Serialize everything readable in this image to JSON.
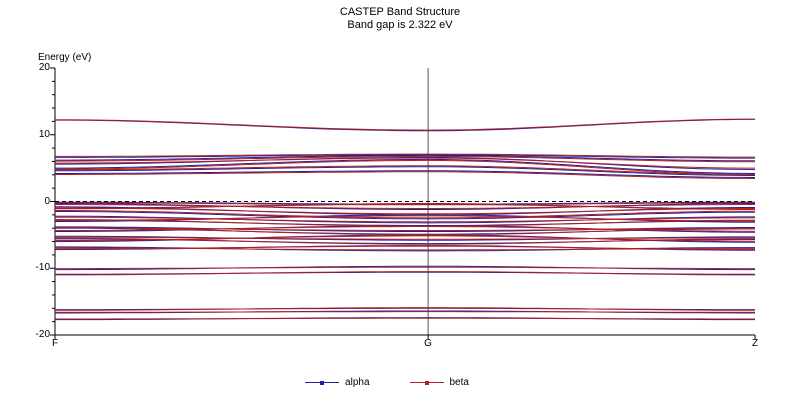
{
  "title": {
    "line1": "CASTEP Band Structure",
    "line2": "Band gap is 2.322 eV"
  },
  "axis": {
    "ylabel": "Energy (eV)",
    "yticks": [
      "20",
      "10",
      "0",
      "-10",
      "-20"
    ],
    "xticks": [
      "F",
      "G",
      "Z"
    ]
  },
  "legend": [
    {
      "label": "alpha",
      "color": "#2020a0"
    },
    {
      "label": "beta",
      "color": "#b02020"
    }
  ],
  "chart_data": {
    "type": "line",
    "title": "CASTEP Band Structure",
    "subtitle": "Band gap is 2.322 eV",
    "ylabel": "Energy (eV)",
    "ylim": [
      -20,
      20
    ],
    "x_kpoints": [
      "F",
      "G",
      "Z"
    ],
    "g_position": 0.533,
    "fermi_level_eV": 0,
    "band_gap_eV": 2.322,
    "series": [
      {
        "name": "alpha",
        "color": "#2020a0",
        "bands_fgz": [
          [
            12.2,
            10.6,
            12.3
          ],
          [
            6.6,
            7.0,
            6.5
          ],
          [
            6.2,
            6.9,
            6.1
          ],
          [
            5.6,
            6.6,
            4.8
          ],
          [
            5.0,
            6.3,
            4.2
          ],
          [
            4.6,
            5.2,
            3.9
          ],
          [
            4.2,
            4.6,
            3.6
          ],
          [
            -0.1,
            -0.4,
            -0.1
          ],
          [
            -0.3,
            -1.2,
            -0.3
          ],
          [
            -0.8,
            -2.0,
            -0.9
          ],
          [
            -1.0,
            -0.4,
            -1.1
          ],
          [
            -1.5,
            -2.6,
            -1.6
          ],
          [
            -2.2,
            -3.2,
            -2.3
          ],
          [
            -2.8,
            -3.6,
            -2.9
          ],
          [
            -3.0,
            -2.0,
            -3.1
          ],
          [
            -3.8,
            -4.5,
            -3.9
          ],
          [
            -4.0,
            -4.9,
            -4.1
          ],
          [
            -4.5,
            -3.6,
            -4.6
          ],
          [
            -5.2,
            -5.8,
            -5.3
          ],
          [
            -5.6,
            -6.3,
            -5.7
          ],
          [
            -6.0,
            -5.0,
            -6.1
          ],
          [
            -6.8,
            -7.4,
            -6.9
          ],
          [
            -7.2,
            -6.6,
            -7.3
          ],
          [
            -10.2,
            -9.7,
            -10.2
          ],
          [
            -10.9,
            -10.6,
            -10.9
          ],
          [
            -16.2,
            -16.0,
            -16.2
          ],
          [
            -16.7,
            -16.4,
            -16.7
          ],
          [
            -17.7,
            -17.4,
            -17.7
          ]
        ]
      },
      {
        "name": "beta",
        "color": "#b02020",
        "bands_fgz": [
          [
            12.25,
            10.7,
            12.35
          ],
          [
            6.75,
            7.1,
            6.65
          ],
          [
            6.05,
            6.75,
            5.95
          ],
          [
            5.75,
            6.5,
            5.0
          ],
          [
            4.85,
            6.15,
            4.05
          ],
          [
            4.75,
            5.35,
            4.05
          ],
          [
            4.05,
            4.45,
            3.45
          ],
          [
            -0.2,
            -0.5,
            -0.2
          ],
          [
            -0.45,
            -1.05,
            -0.45
          ],
          [
            -0.95,
            -1.85,
            -1.05
          ],
          [
            -1.1,
            -0.3,
            -1.2
          ],
          [
            -1.35,
            -2.45,
            -1.45
          ],
          [
            -2.35,
            -3.05,
            -2.45
          ],
          [
            -2.7,
            -3.7,
            -2.8
          ],
          [
            -2.85,
            -2.15,
            -2.95
          ],
          [
            -3.95,
            -4.35,
            -4.05
          ],
          [
            -3.9,
            -5.0,
            -4.0
          ],
          [
            -4.35,
            -3.75,
            -4.45
          ],
          [
            -5.35,
            -5.65,
            -5.45
          ],
          [
            -5.5,
            -6.4,
            -5.6
          ],
          [
            -5.85,
            -5.15,
            -5.95
          ],
          [
            -6.95,
            -7.25,
            -7.05
          ],
          [
            -7.1,
            -6.7,
            -7.2
          ],
          [
            -10.05,
            -9.85,
            -10.05
          ],
          [
            -11.0,
            -10.5,
            -11.0
          ],
          [
            -16.3,
            -15.9,
            -16.3
          ],
          [
            -16.6,
            -16.5,
            -16.6
          ],
          [
            -17.6,
            -17.5,
            -17.6
          ]
        ]
      }
    ]
  }
}
